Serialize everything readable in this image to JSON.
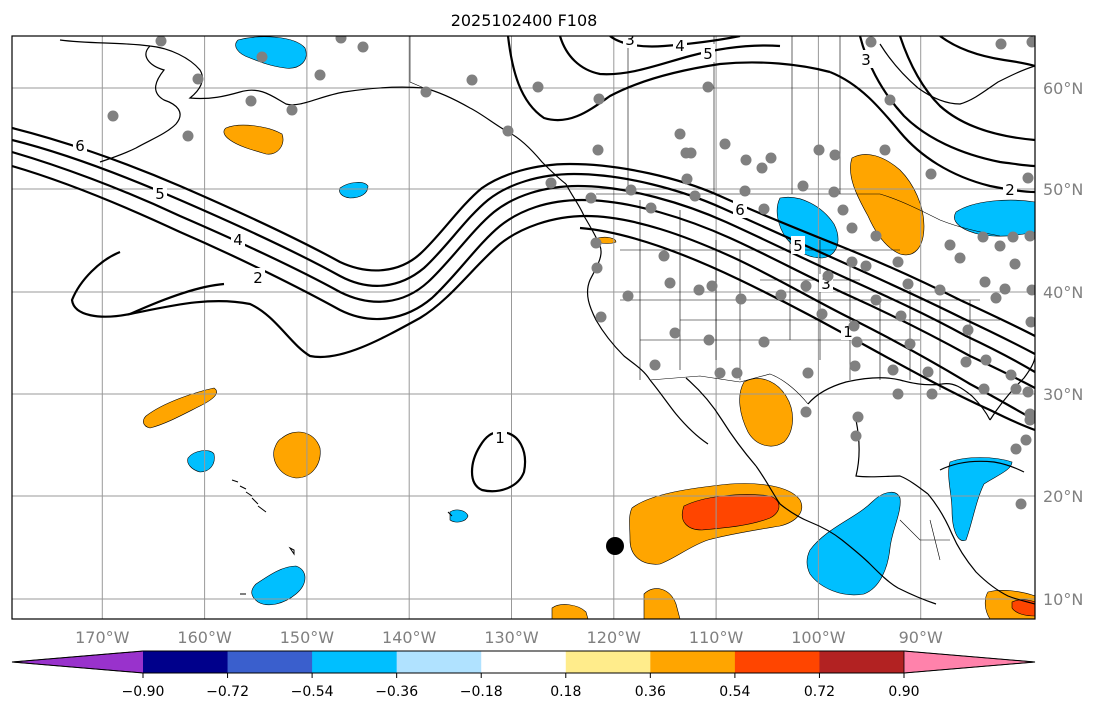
{
  "title": "2025102400 F108",
  "map": {
    "lon_range": [
      -180,
      -80
    ],
    "lat_range": [
      8,
      65
    ],
    "lon_labels": [
      "170°W",
      "160°W",
      "150°W",
      "140°W",
      "130°W",
      "120°W",
      "110°W",
      "100°W",
      "90°W"
    ],
    "lat_labels": [
      "60°N",
      "50°N",
      "40°N",
      "30°N",
      "20°N",
      "10°N"
    ],
    "grid": true,
    "contour_labels": [
      "6",
      "5",
      "4",
      "2",
      "5",
      "4",
      "3",
      "3",
      "2",
      "6",
      "5",
      "3",
      "1",
      "1"
    ],
    "colors": {
      "orange": "#ffa500",
      "red_orange": "#ff4500",
      "cyan": "#00bfff",
      "station_marker": "#808080",
      "storm_marker": "#000000"
    }
  },
  "colorbar": {
    "tick_labels": [
      "−0.90",
      "−0.72",
      "−0.54",
      "−0.36",
      "−0.18",
      "0.18",
      "0.36",
      "0.54",
      "0.72",
      "0.90"
    ],
    "colors": [
      "#9932cc",
      "#00008b",
      "#3a5fcd",
      "#00bfff",
      "#b0e2ff",
      "#ffffff",
      "#ffec8b",
      "#ffa500",
      "#ff4500",
      "#b22222",
      "#ff82ab"
    ]
  }
}
